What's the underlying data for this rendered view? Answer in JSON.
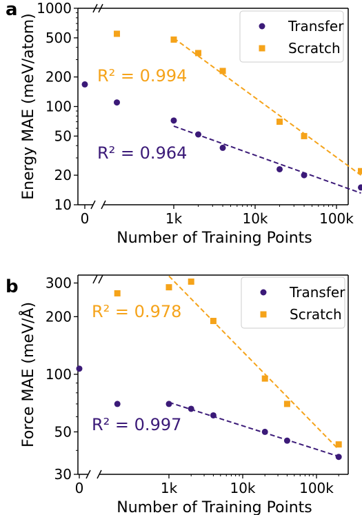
{
  "chart_data": [
    {
      "panel_label": "a",
      "type": "scatter",
      "xlabel": "Number of Training Points",
      "ylabel": "Energy MAE (meV/atom)",
      "x_scale": "log (broken axis)",
      "y_scale": "log",
      "ylim": [
        10,
        1000
      ],
      "x_ticks": [
        "0",
        "1k",
        "10k",
        "100k"
      ],
      "y_ticks": [
        "10",
        "20",
        "50",
        "100",
        "200",
        "500",
        "1000"
      ],
      "legend_position": "top-right",
      "series": [
        {
          "name": "Transfer",
          "color": "#3b1a78",
          "marker": "circle",
          "zero_shot": [
            {
              "x": 0,
              "y": 168
            }
          ],
          "x": [
            200,
            1000,
            2000,
            4000,
            20000,
            40000,
            200000
          ],
          "y": [
            110,
            72,
            52,
            38,
            23,
            20,
            15
          ],
          "fit_from": 1000,
          "r2_label": "R² = 0.964"
        },
        {
          "name": "Scratch",
          "color": "#f5a31a",
          "marker": "square",
          "zero_shot": [],
          "x": [
            200,
            1000,
            2000,
            4000,
            20000,
            40000,
            200000
          ],
          "y": [
            550,
            480,
            350,
            230,
            70,
            50,
            22
          ],
          "fit_from": 1000,
          "r2_label": "R² = 0.994"
        }
      ]
    },
    {
      "panel_label": "b",
      "type": "scatter",
      "xlabel": "Number of Training Points",
      "ylabel": "Force MAE (meV/Å)",
      "x_scale": "log (broken axis)",
      "y_scale": "log",
      "ylim": [
        30,
        330
      ],
      "x_ticks": [
        "0",
        "1k",
        "10k",
        "100k"
      ],
      "y_ticks": [
        "30",
        "50",
        "100",
        "200",
        "300"
      ],
      "legend_position": "top-right",
      "series": [
        {
          "name": "Transfer",
          "color": "#3b1a78",
          "marker": "circle",
          "zero_shot": [
            {
              "x": 0,
              "y": 107
            }
          ],
          "x": [
            200,
            1000,
            2000,
            4000,
            20000,
            40000,
            200000
          ],
          "y": [
            70,
            70,
            66,
            61,
            50,
            45,
            37
          ],
          "fit_from": 1000,
          "r2_label": "R² = 0.997"
        },
        {
          "name": "Scratch",
          "color": "#f5a31a",
          "marker": "square",
          "zero_shot": [],
          "x": [
            200,
            1000,
            2000,
            4000,
            20000,
            40000,
            200000
          ],
          "y": [
            265,
            285,
            305,
            190,
            95,
            70,
            43
          ],
          "fit_from": 1000,
          "r2_label": "R² = 0.978"
        }
      ]
    }
  ]
}
